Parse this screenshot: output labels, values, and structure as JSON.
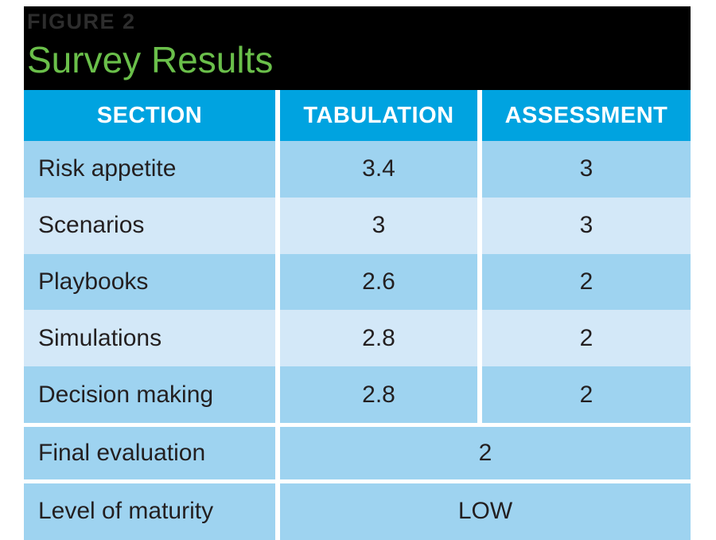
{
  "figure": {
    "label": "FIGURE 2",
    "title": "Survey Results"
  },
  "table": {
    "columns": [
      "SECTION",
      "TABULATION",
      "ASSESSMENT"
    ],
    "rows": [
      {
        "section": "Risk appetite",
        "tabulation": "3.4",
        "assessment": "3"
      },
      {
        "section": "Scenarios",
        "tabulation": "3",
        "assessment": "3"
      },
      {
        "section": "Playbooks",
        "tabulation": "2.6",
        "assessment": "2"
      },
      {
        "section": "Simulations",
        "tabulation": "2.8",
        "assessment": "2"
      },
      {
        "section": "Decision making",
        "tabulation": "2.8",
        "assessment": "2"
      }
    ],
    "summary_rows": [
      {
        "section": "Final evaluation",
        "value": "2"
      },
      {
        "section": "Level of maturity",
        "value": "LOW"
      }
    ]
  },
  "chart_data": {
    "type": "table",
    "title": "Survey Results",
    "figure_label": "FIGURE 2",
    "columns": [
      "SECTION",
      "TABULATION",
      "ASSESSMENT"
    ],
    "rows": [
      [
        "Risk appetite",
        3.4,
        3
      ],
      [
        "Scenarios",
        3,
        3
      ],
      [
        "Playbooks",
        2.6,
        2
      ],
      [
        "Simulations",
        2.8,
        2
      ],
      [
        "Decision making",
        2.8,
        2
      ]
    ],
    "final_evaluation": 2,
    "level_of_maturity": "LOW"
  },
  "colors": {
    "banner_background": "#000000",
    "figure_label_text": "#2d2d2d",
    "title_text": "#6abf4a",
    "header_background": "#00a3e0",
    "header_text": "#ffffff",
    "row_medium_blue": "#9ed3f0",
    "row_pale_blue": "#d3e8f8",
    "cell_text": "#231f20"
  }
}
